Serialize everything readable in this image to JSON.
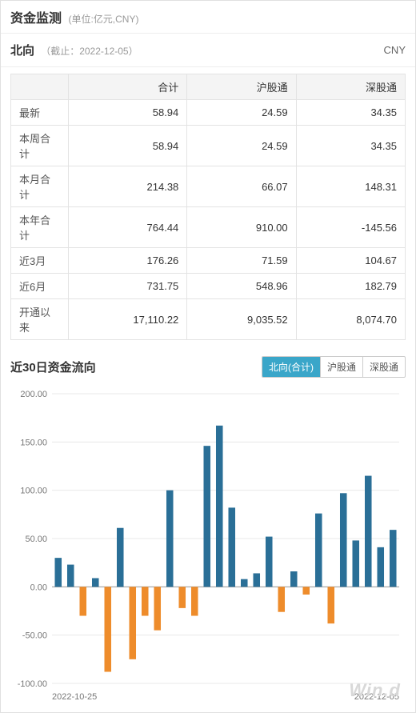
{
  "header": {
    "title": "资金监测",
    "unit": "(单位:亿元,CNY)"
  },
  "section": {
    "title": "北向",
    "date_prefix": "（截止：",
    "date": "2022-12-05",
    "date_suffix": "）",
    "currency": "CNY"
  },
  "table": {
    "columns": [
      "",
      "合计",
      "沪股通",
      "深股通"
    ],
    "rows": [
      [
        "最新",
        "58.94",
        "24.59",
        "34.35"
      ],
      [
        "本周合计",
        "58.94",
        "24.59",
        "34.35"
      ],
      [
        "本月合计",
        "214.38",
        "66.07",
        "148.31"
      ],
      [
        "本年合计",
        "764.44",
        "910.00",
        "-145.56"
      ],
      [
        "近3月",
        "176.26",
        "71.59",
        "104.67"
      ],
      [
        "近6月",
        "731.75",
        "548.96",
        "182.79"
      ],
      [
        "开通以来",
        "17,110.22",
        "9,035.52",
        "8,074.70"
      ]
    ]
  },
  "chart": {
    "title": "近30日资金流向",
    "tabs": [
      "北向(合计)",
      "沪股通",
      "深股通"
    ],
    "active_tab": 0,
    "type": "bar",
    "ylim": [
      -100,
      200
    ],
    "ytick_step": 50,
    "yticks": [
      -100.0,
      -50.0,
      0.0,
      50.0,
      100.0,
      150.0,
      200.0
    ],
    "x_start_label": "2022-10-25",
    "x_end_label": "2022-12-05",
    "background_color": "#ffffff",
    "grid_color": "#e8e8e8",
    "baseline_color": "#999999",
    "pos_color": "#2a6f97",
    "neg_color": "#ee8c2b",
    "bar_width_ratio": 0.55,
    "label_fontsize": 11,
    "label_color": "#777777",
    "values": [
      30,
      23,
      -30,
      9,
      -88,
      61,
      -75,
      -30,
      -45,
      100,
      -22,
      -30,
      146,
      167,
      82,
      8,
      14,
      52,
      -26,
      16,
      -8,
      76,
      -38,
      97,
      48,
      115,
      41,
      59
    ],
    "watermark": "Win.d"
  }
}
